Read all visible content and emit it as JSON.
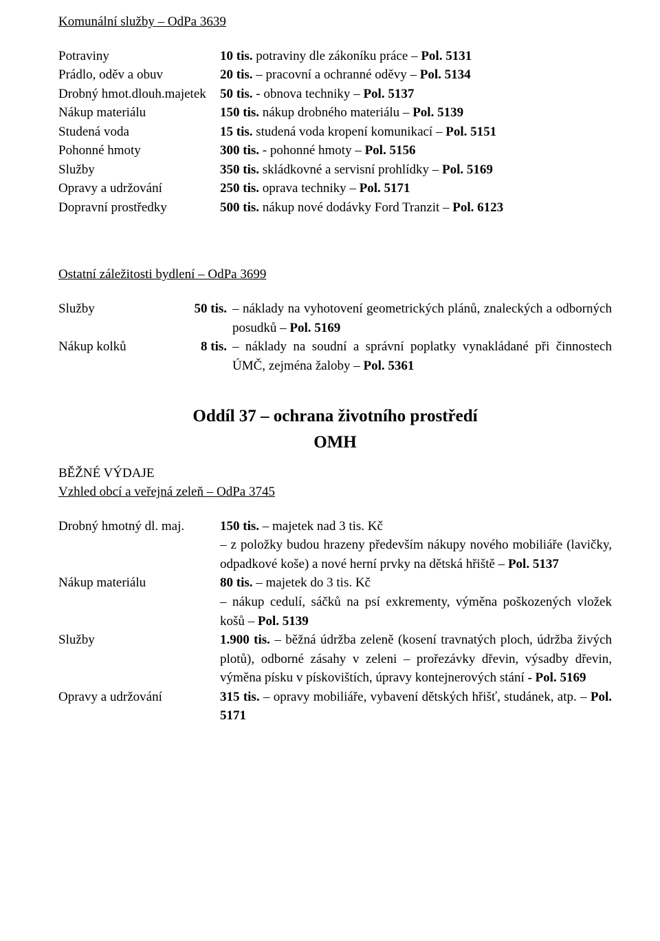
{
  "section1": {
    "title": "Komunální služby – OdPa 3639",
    "rows": [
      {
        "label": "Potraviny",
        "desc_html": "<b>10 tis.</b> potraviny dle zákoníku práce – <b>Pol. 5131</b>"
      },
      {
        "label": "Prádlo, oděv a obuv",
        "desc_html": "<b>20 tis.</b> – pracovní a ochranné oděvy – <b>Pol. 5134</b>"
      },
      {
        "label": "Drobný hmot.dlouh.majetek",
        "desc_html": "<b>50 tis.</b> - obnova techniky – <b>Pol. 5137</b>"
      },
      {
        "label": "Nákup materiálu",
        "desc_html": "<b>150 tis.</b> nákup drobného materiálu – <b>Pol. 5139</b>"
      },
      {
        "label": "Studená voda",
        "desc_html": "<b>15 tis.</b> studená voda kropení komunikací – <b>Pol. 5151</b>"
      },
      {
        "label": "Pohonné hmoty",
        "desc_html": "<b>300 tis.</b> - pohonné hmoty – <b>Pol. 5156</b>"
      },
      {
        "label": "Služby",
        "desc_html": "<b>350 tis.</b> skládkovné a servisní prohlídky – <b>Pol. 5169</b>"
      },
      {
        "label": "Opravy a udržování",
        "desc_html": "<b>250 tis.</b> oprava techniky – <b>Pol. 5171</b>"
      },
      {
        "label": "Dopravní prostředky",
        "desc_html": "<b>500 tis.</b> nákup nové dodávky Ford Tranzit – <b>Pol. 6123</b>"
      }
    ]
  },
  "section2": {
    "title": "Ostatní záležitosti bydlení – OdPa 3699",
    "rows": [
      {
        "label": "Služby",
        "amount_html": "<b>50 tis.</b>",
        "desc_html": "– náklady na vyhotovení geometrických plánů, znaleckých a odborných posudků – <b>Pol. 5169</b>"
      },
      {
        "label": "Nákup kolků",
        "amount_html": "<b>8 tis.</b>",
        "desc_html": "– náklady na soudní a správní poplatky vynakládané při činnostech ÚMČ, zejména žaloby – <b>Pol. 5361</b>"
      }
    ]
  },
  "chapter": {
    "h1": "Oddíl 37 – ochrana životního prostředí",
    "h2": "OMH"
  },
  "bezne_label": "BĚŽNÉ VÝDAJE",
  "section3": {
    "title": "Vzhled obcí a veřejná zeleň – OdPa 3745",
    "rows": [
      {
        "label": "Drobný hmotný dl. maj.",
        "desc_html": "<b>150 tis.</b> – majetek nad 3 tis. Kč<br>– z položky budou hrazeny především nákupy nového mobiliáře (lavičky, odpadkové koše) a nové herní prvky na dětská hřiště – <b>Pol. 5137</b>"
      },
      {
        "label": "Nákup materiálu",
        "desc_html": "<b>80 tis.</b> – majetek do 3 tis. Kč<br>– nákup cedulí, sáčků na psí exkrementy, výměna poškozených vložek košů – <b>Pol. 5139</b>"
      },
      {
        "label": "Služby",
        "desc_html": "<b>1.900 tis.</b> – běžná údržba zeleně (kosení travnatých ploch, údržba živých plotů), odborné zásahy v zeleni – prořezávky dřevin, výsadby dřevin, výměna písku v pískovištích, úpravy kontejnerových stání <b>- Pol. 5169</b>"
      },
      {
        "label": "Opravy a udržování",
        "desc_html": "<b>315 tis.</b> – opravy mobiliáře, vybavení dětských hřišť, studánek, atp. – <b>Pol. 5171</b>"
      }
    ]
  }
}
